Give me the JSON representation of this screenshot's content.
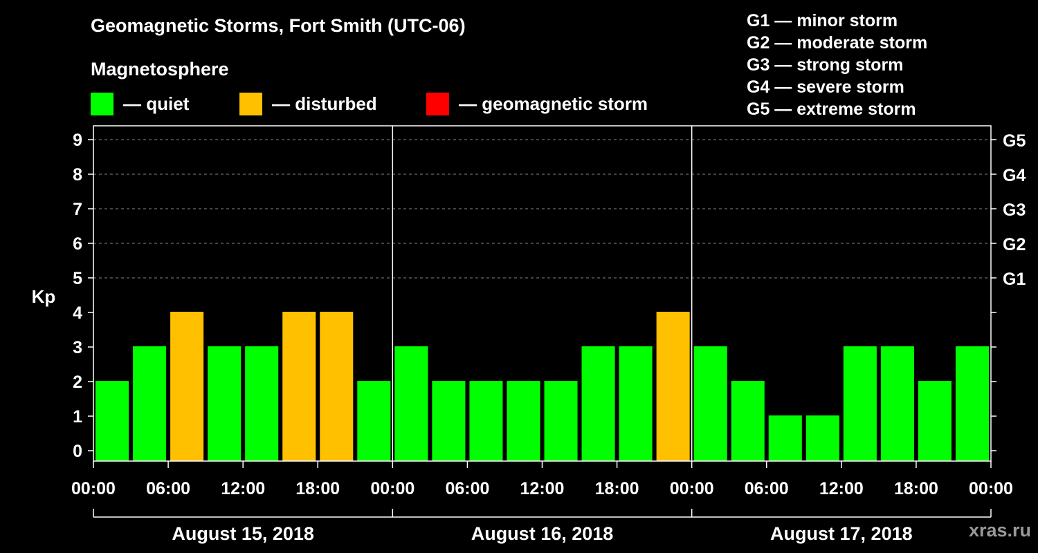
{
  "title": "Geomagnetic Storms, Fort Smith (UTC-06)",
  "subtitle": "Magnetosphere",
  "legend": [
    {
      "label": "— quiet",
      "color": "#00ff00"
    },
    {
      "label": "— disturbed",
      "color": "#ffc000"
    },
    {
      "label": "— geomagnetic storm",
      "color": "#ff0000"
    }
  ],
  "storm_scale": [
    "G1 — minor storm",
    "G2 — moderate storm",
    "G3 — strong storm",
    "G4 — severe storm",
    "G5 — extreme storm"
  ],
  "watermark": "xras.ru",
  "colors": {
    "quiet": "#00ff00",
    "disturbed": "#ffc000",
    "storm": "#ff0000",
    "background": "#000000",
    "axis": "#ffffff",
    "grid": "#888888"
  },
  "chart_data": {
    "type": "bar",
    "title": "Geomagnetic Storms, Fort Smith (UTC-06)",
    "ylabel": "Kp",
    "ylim": [
      0,
      9
    ],
    "yticks": [
      "0",
      "1",
      "2",
      "3",
      "4",
      "5",
      "6",
      "7",
      "8",
      "9"
    ],
    "gticks": [
      {
        "kp": 5,
        "label": "G1"
      },
      {
        "kp": 6,
        "label": "G2"
      },
      {
        "kp": 7,
        "label": "G3"
      },
      {
        "kp": 8,
        "label": "G4"
      },
      {
        "kp": 9,
        "label": "G5"
      }
    ],
    "grid_from_kp": 5,
    "xticks": [
      "00:00",
      "06:00",
      "12:00",
      "18:00",
      "00:00",
      "06:00",
      "12:00",
      "18:00",
      "00:00",
      "06:00",
      "12:00",
      "18:00",
      "00:00"
    ],
    "days": [
      "August 15, 2018",
      "August 16, 2018",
      "August 17, 2018"
    ],
    "interval_hours": 3,
    "values": [
      2,
      3,
      4,
      3,
      3,
      4,
      4,
      2,
      3,
      2,
      2,
      2,
      2,
      3,
      3,
      4,
      3,
      2,
      1,
      1,
      3,
      3,
      2,
      3
    ],
    "status": [
      "quiet",
      "quiet",
      "disturbed",
      "quiet",
      "quiet",
      "disturbed",
      "disturbed",
      "quiet",
      "quiet",
      "quiet",
      "quiet",
      "quiet",
      "quiet",
      "quiet",
      "quiet",
      "disturbed",
      "quiet",
      "quiet",
      "quiet",
      "quiet",
      "quiet",
      "quiet",
      "quiet",
      "quiet"
    ]
  }
}
